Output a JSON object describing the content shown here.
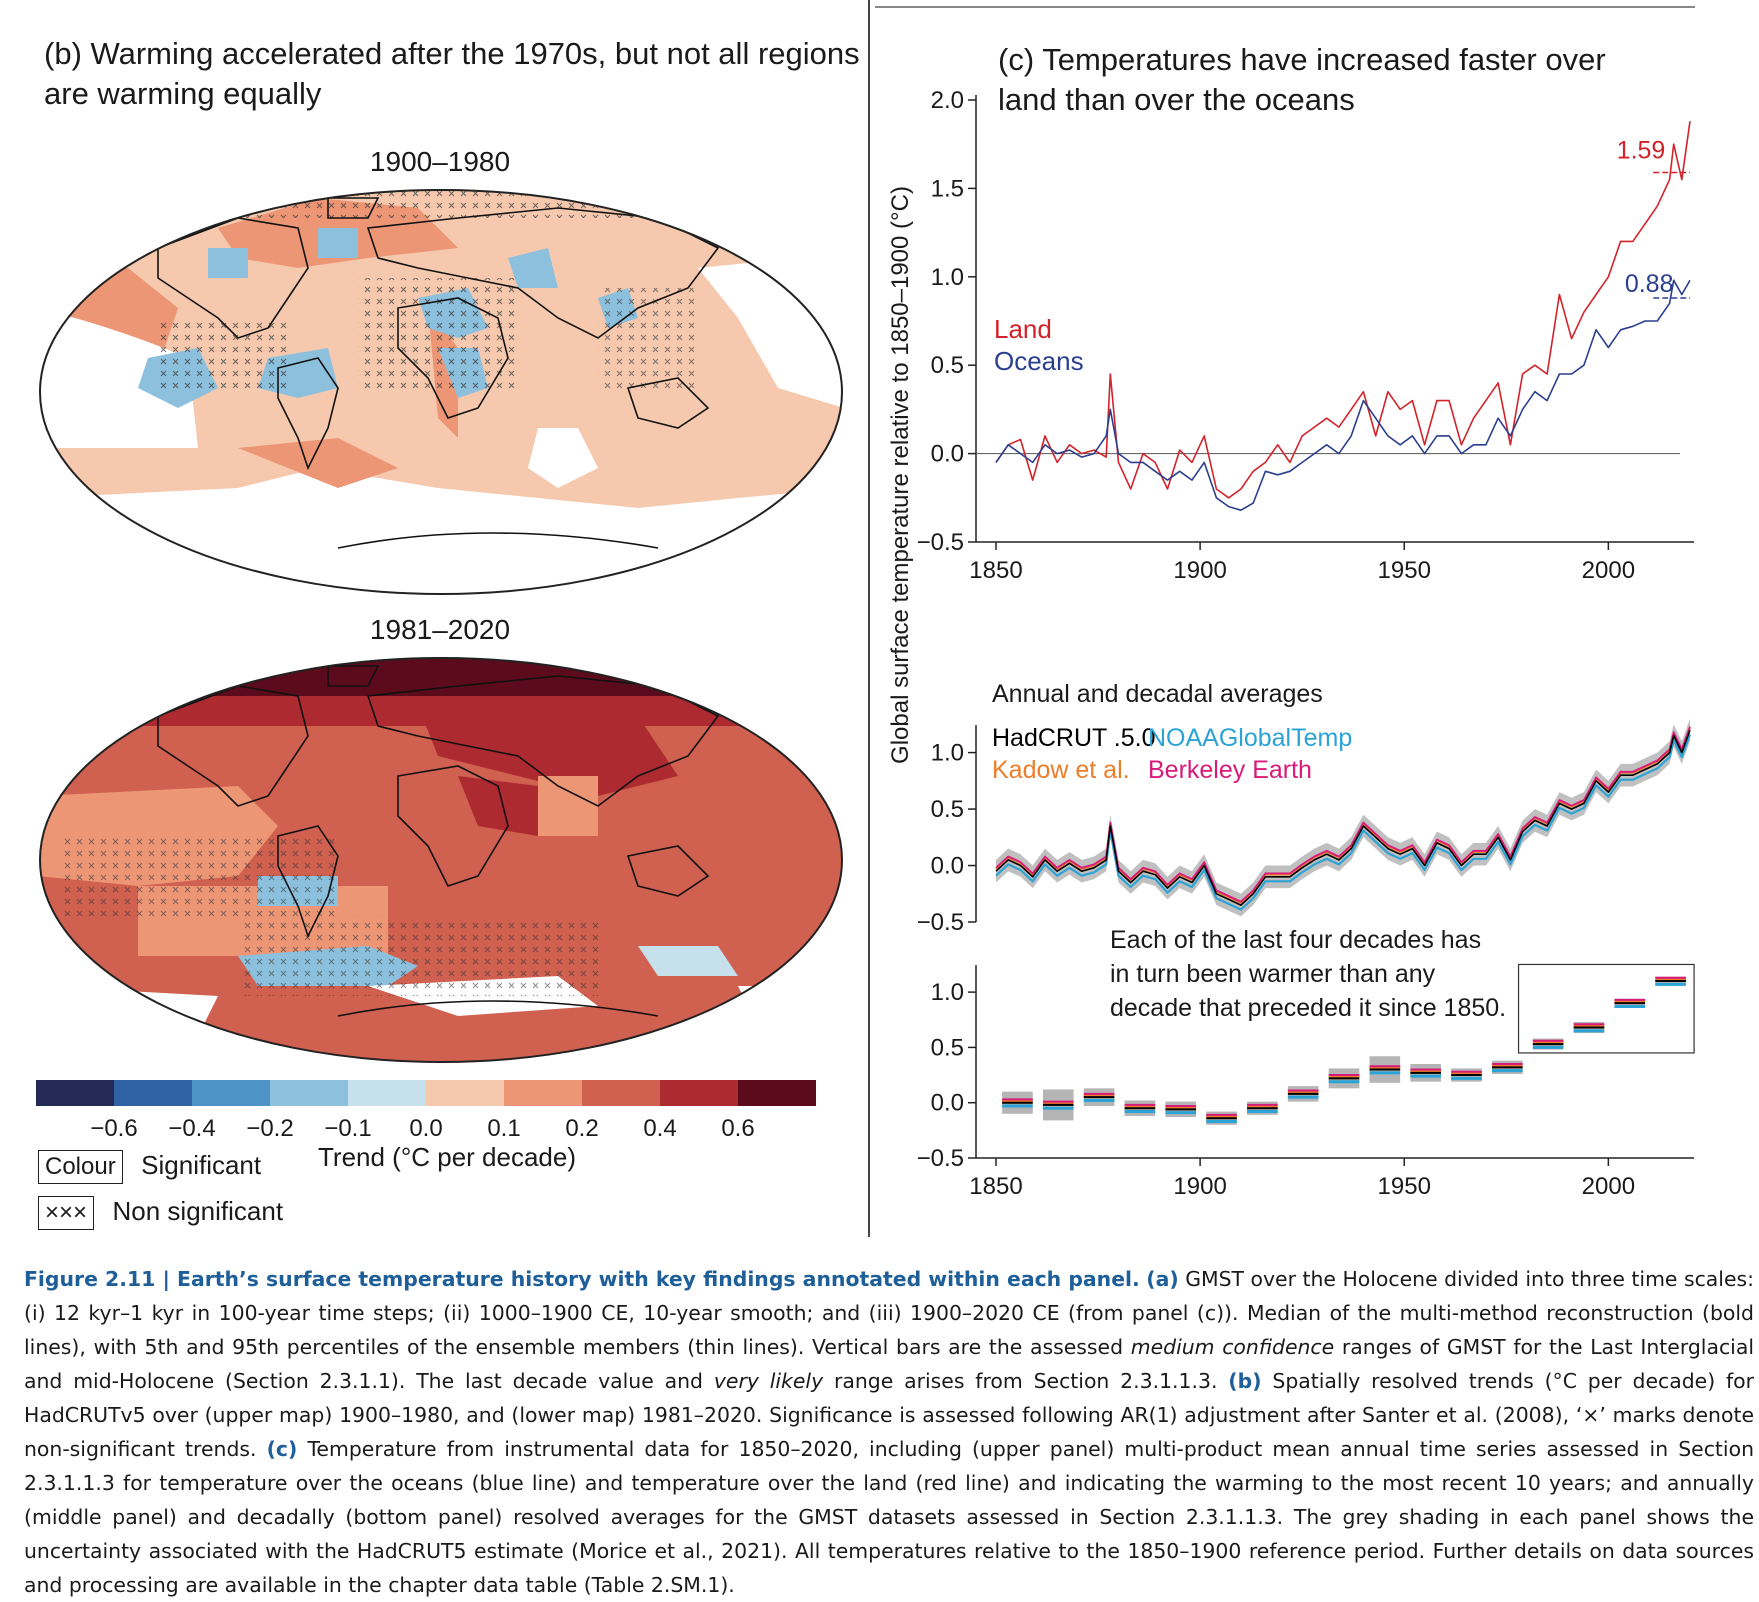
{
  "panel_b": {
    "title": "(b) Warming accelerated after the 1970s, but not all regions are warming equally",
    "title_line1": "(b) Warming accelerated after the 1970s, but not all regions",
    "title_line2": "are warming equally",
    "map1_label": "1900–1980",
    "map2_label": "1981–2020",
    "colorbar": {
      "colors": [
        "#232a55",
        "#2f62a4",
        "#4e93c8",
        "#8cc0dd",
        "#c6e0ec",
        "#f6c9ae",
        "#ec9676",
        "#d0604f",
        "#ad2a31",
        "#5c0b1c"
      ],
      "ticks": [
        "−0.6",
        "−0.4",
        "−0.2",
        "−0.1",
        "0.0",
        "0.1",
        "0.2",
        "0.4",
        "0.6"
      ],
      "axis_label": "Trend (°C per decade)"
    },
    "legend": {
      "colour_box": "Colour",
      "colour_label": "Significant",
      "cross_box": "×××",
      "cross_label": "Non significant"
    }
  },
  "panel_c": {
    "title_line1": "(c) Temperatures have increased faster over",
    "title_line2": "land than over the oceans",
    "ylabel": "Global surface temperature relative to 1850–1900 (°C)",
    "colors": {
      "land": "#d2232a",
      "oceans": "#2b3f8f",
      "hadcrut": "#000000",
      "noaa": "#2ba3d6",
      "kadow": "#ee7d2a",
      "berkeley": "#d81b7a",
      "uncert": "#b5b5b5"
    }
  },
  "chart_data": [
    {
      "type": "line",
      "id": "upper",
      "xlim": [
        1850,
        2020
      ],
      "ylim": [
        -0.5,
        2.0
      ],
      "yticks": [
        "−0.5",
        "0.0",
        "0.5",
        "1.0",
        "1.5",
        "2.0"
      ],
      "xticks": [
        "1850",
        "1900",
        "1950",
        "2000"
      ],
      "legend": [
        "Land",
        "Oceans"
      ],
      "annotations": [
        "1.59",
        "0.88"
      ],
      "series": [
        {
          "name": "Land",
          "x": [
            1850,
            1853,
            1856,
            1859,
            1862,
            1865,
            1868,
            1871,
            1874,
            1877,
            1878,
            1880,
            1883,
            1886,
            1889,
            1892,
            1895,
            1898,
            1901,
            1904,
            1907,
            1910,
            1913,
            1916,
            1919,
            1922,
            1925,
            1928,
            1931,
            1934,
            1937,
            1940,
            1943,
            1946,
            1949,
            1952,
            1955,
            1958,
            1961,
            1964,
            1967,
            1970,
            1973,
            1976,
            1979,
            1982,
            1985,
            1988,
            1991,
            1994,
            1997,
            2000,
            2003,
            2006,
            2009,
            2012,
            2015,
            2016,
            2018,
            2020
          ],
          "y": [
            -0.05,
            0.05,
            0.08,
            -0.15,
            0.1,
            -0.05,
            0.05,
            0.0,
            0.02,
            -0.02,
            0.45,
            -0.05,
            -0.2,
            0.0,
            -0.05,
            -0.2,
            0.02,
            -0.05,
            0.1,
            -0.2,
            -0.25,
            -0.2,
            -0.1,
            -0.05,
            0.05,
            -0.05,
            0.1,
            0.15,
            0.2,
            0.15,
            0.25,
            0.35,
            0.1,
            0.35,
            0.25,
            0.3,
            0.05,
            0.3,
            0.3,
            0.05,
            0.2,
            0.3,
            0.4,
            0.05,
            0.45,
            0.5,
            0.45,
            0.9,
            0.65,
            0.8,
            0.9,
            1.0,
            1.2,
            1.2,
            1.3,
            1.4,
            1.55,
            1.75,
            1.55,
            1.88
          ]
        },
        {
          "name": "Oceans",
          "x": [
            1850,
            1853,
            1856,
            1859,
            1862,
            1865,
            1868,
            1871,
            1874,
            1877,
            1878,
            1880,
            1883,
            1886,
            1889,
            1892,
            1895,
            1898,
            1901,
            1904,
            1907,
            1910,
            1913,
            1916,
            1919,
            1922,
            1925,
            1928,
            1931,
            1934,
            1937,
            1940,
            1943,
            1946,
            1949,
            1952,
            1955,
            1958,
            1961,
            1964,
            1967,
            1970,
            1973,
            1976,
            1979,
            1982,
            1985,
            1988,
            1991,
            1994,
            1997,
            2000,
            2003,
            2006,
            2009,
            2012,
            2015,
            2016,
            2018,
            2020
          ],
          "y": [
            -0.05,
            0.05,
            0.0,
            -0.05,
            0.05,
            0.0,
            0.02,
            -0.02,
            0.0,
            0.1,
            0.25,
            0.0,
            -0.05,
            -0.05,
            -0.1,
            -0.15,
            -0.1,
            -0.15,
            -0.05,
            -0.25,
            -0.3,
            -0.32,
            -0.28,
            -0.1,
            -0.12,
            -0.1,
            -0.05,
            0.0,
            0.05,
            0.0,
            0.1,
            0.3,
            0.2,
            0.1,
            0.05,
            0.1,
            0.0,
            0.1,
            0.1,
            0.0,
            0.05,
            0.05,
            0.2,
            0.1,
            0.25,
            0.35,
            0.3,
            0.45,
            0.45,
            0.5,
            0.7,
            0.6,
            0.7,
            0.72,
            0.75,
            0.75,
            0.85,
            0.98,
            0.9,
            0.98
          ]
        }
      ]
    },
    {
      "type": "line",
      "id": "middle",
      "title": "Annual and decadal averages",
      "xlim": [
        1850,
        2020
      ],
      "ylim": [
        -0.5,
        1.2
      ],
      "yticks": [
        "−0.5",
        "0.0",
        "0.5",
        "1.0"
      ],
      "legend": [
        "HadCRUT .5.0",
        "NOAAGlobalTemp",
        "Kadow et al.",
        "Berkeley Earth"
      ],
      "series": [
        {
          "name": "HadCRUT .5.0",
          "x": [
            1850,
            1853,
            1856,
            1859,
            1862,
            1865,
            1868,
            1871,
            1874,
            1877,
            1878,
            1880,
            1883,
            1886,
            1889,
            1892,
            1895,
            1898,
            1901,
            1904,
            1907,
            1910,
            1913,
            1916,
            1919,
            1922,
            1925,
            1928,
            1931,
            1934,
            1937,
            1940,
            1943,
            1946,
            1949,
            1952,
            1955,
            1958,
            1961,
            1964,
            1967,
            1970,
            1973,
            1976,
            1979,
            1982,
            1985,
            1988,
            1991,
            1994,
            1997,
            2000,
            2003,
            2006,
            2009,
            2012,
            2015,
            2016,
            2018,
            2020
          ],
          "y": [
            -0.05,
            0.05,
            0.0,
            -0.1,
            0.05,
            -0.05,
            0.02,
            -0.05,
            -0.02,
            0.05,
            0.35,
            -0.05,
            -0.15,
            -0.05,
            -0.08,
            -0.2,
            -0.1,
            -0.15,
            0.0,
            -0.25,
            -0.3,
            -0.35,
            -0.25,
            -0.1,
            -0.1,
            -0.1,
            -0.02,
            0.05,
            0.1,
            0.05,
            0.15,
            0.35,
            0.25,
            0.15,
            0.1,
            0.15,
            0.0,
            0.2,
            0.15,
            0.0,
            0.1,
            0.1,
            0.25,
            0.05,
            0.3,
            0.4,
            0.35,
            0.55,
            0.5,
            0.55,
            0.75,
            0.65,
            0.8,
            0.8,
            0.85,
            0.9,
            1.0,
            1.15,
            1.0,
            1.2
          ]
        }
      ]
    },
    {
      "type": "bar",
      "id": "bottom",
      "xlim": [
        1850,
        2020
      ],
      "ylim": [
        -0.5,
        1.2
      ],
      "yticks": [
        "−0.5",
        "0.0",
        "0.5",
        "1.0"
      ],
      "xticks": [
        "1850",
        "1900",
        "1950",
        "2000"
      ],
      "annotation": "Each of the last four decades has in turn been warmer than any decade that preceded it since 1850.",
      "categories": [
        "1850s",
        "1860s",
        "1870s",
        "1880s",
        "1890s",
        "1900s",
        "1910s",
        "1920s",
        "1930s",
        "1940s",
        "1950s",
        "1960s",
        "1970s",
        "1980s",
        "1990s",
        "2000s",
        "2010s"
      ],
      "values": [
        0.0,
        -0.02,
        0.05,
        -0.05,
        -0.06,
        -0.14,
        -0.05,
        0.08,
        0.22,
        0.3,
        0.27,
        0.25,
        0.32,
        0.53,
        0.68,
        0.9,
        1.1
      ],
      "uncertainty_half_width": [
        0.1,
        0.14,
        0.08,
        0.07,
        0.07,
        0.06,
        0.06,
        0.07,
        0.09,
        0.12,
        0.08,
        0.06,
        0.06,
        0.05,
        0.05,
        0.04,
        0.04
      ]
    }
  ],
  "caption": {
    "lead": "Figure 2.11 | Earth’s surface temperature history with key findings annotated within each panel.",
    "a_label": "(a)",
    "a_text": "GMST over the Holocene divided into three time scales: (i) 12 kyr–1 kyr in 100-year time steps; (ii) 1000–1900 CE, 10-year smooth; and (iii) 1900–2020 CE (from panel (c)). Median of the multi-method reconstruction (bold lines), with 5th and 95th percentiles of the ensemble members (thin lines). Vertical bars are the assessed",
    "a_italic": "medium confidence",
    "a_text2": "ranges of GMST for the Last Interglacial and mid-Holocene (Section 2.3.1.1). The last decade value and",
    "a_italic2": "very likely",
    "a_text3": "range arises from Section 2.3.1.1.3.",
    "b_label": "(b)",
    "b_text": "Spatially resolved trends (°C per decade) for HadCRUTv5 over (upper map) 1900–1980, and (lower map) 1981–2020. Significance is assessed following AR(1) adjustment after Santer et al. (2008), ‘×’ marks denote non-significant trends.",
    "c_label": "(c)",
    "c_text": "Temperature from instrumental data for 1850–2020, including (upper panel) multi-product mean annual time series assessed in Section 2.3.1.1.3 for temperature over the oceans (blue line) and temperature over the land (red line) and indicating the warming to the most recent 10 years; and annually (middle panel) and decadally (bottom panel) resolved averages for the GMST datasets assessed in Section 2.3.1.1.3. The grey shading in each panel shows the uncertainty associated with the HadCRUT5 estimate (Morice et al., 2021). All temperatures relative to the 1850–1900 reference period. Further details on data sources and processing are available in the chapter data table (Table 2.SM.1)."
  }
}
